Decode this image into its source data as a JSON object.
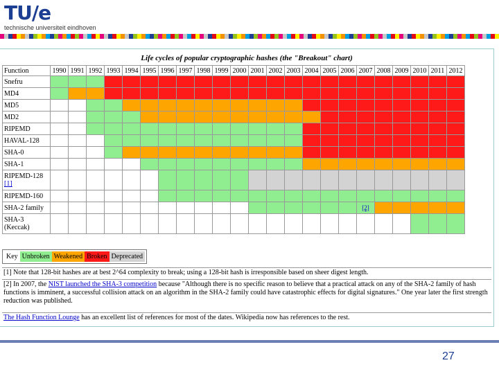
{
  "logo": {
    "mark": "TU/e",
    "subtitle": "technische universiteit eindhoven"
  },
  "chart_data": {
    "type": "table",
    "title": "Life cycles of popular cryptographic hashes (the \"Breakout\" chart)",
    "header_label": "Function",
    "years": [
      "1990",
      "1991",
      "1992",
      "1993",
      "1994",
      "1995",
      "1996",
      "1997",
      "1998",
      "1999",
      "2000",
      "2001",
      "2002",
      "2003",
      "2004",
      "2005",
      "2006",
      "2007",
      "2008",
      "2009",
      "2010",
      "2011",
      "2012"
    ],
    "rows": [
      {
        "name": "Snefru",
        "cells": "UUUBBBBBBBBBBBBBBBBBBBB"
      },
      {
        "name": "MD4",
        "cells": "UWWBBBBBBBBBBBBBBBBBBBB"
      },
      {
        "name": "MD5",
        "cells": "EEUUWWWWWWWWWWBBBBBBBBB"
      },
      {
        "name": "MD2",
        "cells": "EEUUUWWWWWWWWWWBBBBBBBB"
      },
      {
        "name": "RIPEMD",
        "cells": "EEUUUUUUUUUUUUBBBBBBBBB"
      },
      {
        "name": "HAVAL-128",
        "cells": "EEEUUUUUUUUUUUBBBBBBBBB"
      },
      {
        "name": "SHA-0",
        "cells": "EEEUWWWWWWWWWWBBBBBBBBB"
      },
      {
        "name": "SHA-1",
        "cells": "EEEEEUUUUUUUUUWWWWWWWWW"
      },
      {
        "name": "RIPEMD-128",
        "note": "[1]",
        "cells": "EEEEEEUUUUUDDDDDDDDDDDD"
      },
      {
        "name": "RIPEMD-160",
        "cells": "EEEEEEUUUUUUUUUUUUUUUUU"
      },
      {
        "name": "SHA-2 family",
        "cells": "EEEEEEEEEEEUUUUUUUWWWWW",
        "cell_note": {
          "index": 17,
          "text": "[2]"
        }
      },
      {
        "name": "SHA-3 (Keccak)",
        "cells": "EEEEEEEEEEEEEEEEEEEEUUU"
      }
    ],
    "key": {
      "label": "Key",
      "unbroken": "Unbroken",
      "weakened": "Weakened",
      "broken": "Broken",
      "deprecated": "Deprecated"
    },
    "colors": {
      "U": "#90ee90",
      "W": "#ffa500",
      "B": "#ff1a1a",
      "D": "#d3d3d3",
      "E": "#ffffff"
    }
  },
  "notes": {
    "n1": "[1] Note that 128-bit hashes are at best 2^64 complexity to break; using a 128-bit hash is irresponsible based on sheer digest length.",
    "n2_pre": "[2] In 2007, the ",
    "n2_link": "NIST launched the SHA-3 competition",
    "n2_post": " because \"Although there is no specific reason to believe that a practical attack on any of the SHA-2 family of hash functions is imminent, a successful collision attack on an algorithm in the SHA-2 family could have catastrophic effects for digital signatures.\" One year later the first strength reduction was published.",
    "n3_link": "The Hash Function Lounge",
    "n3_post": " has an excellent list of references for most of the dates. Wikipedia now has references to the rest."
  },
  "page_number": "27"
}
